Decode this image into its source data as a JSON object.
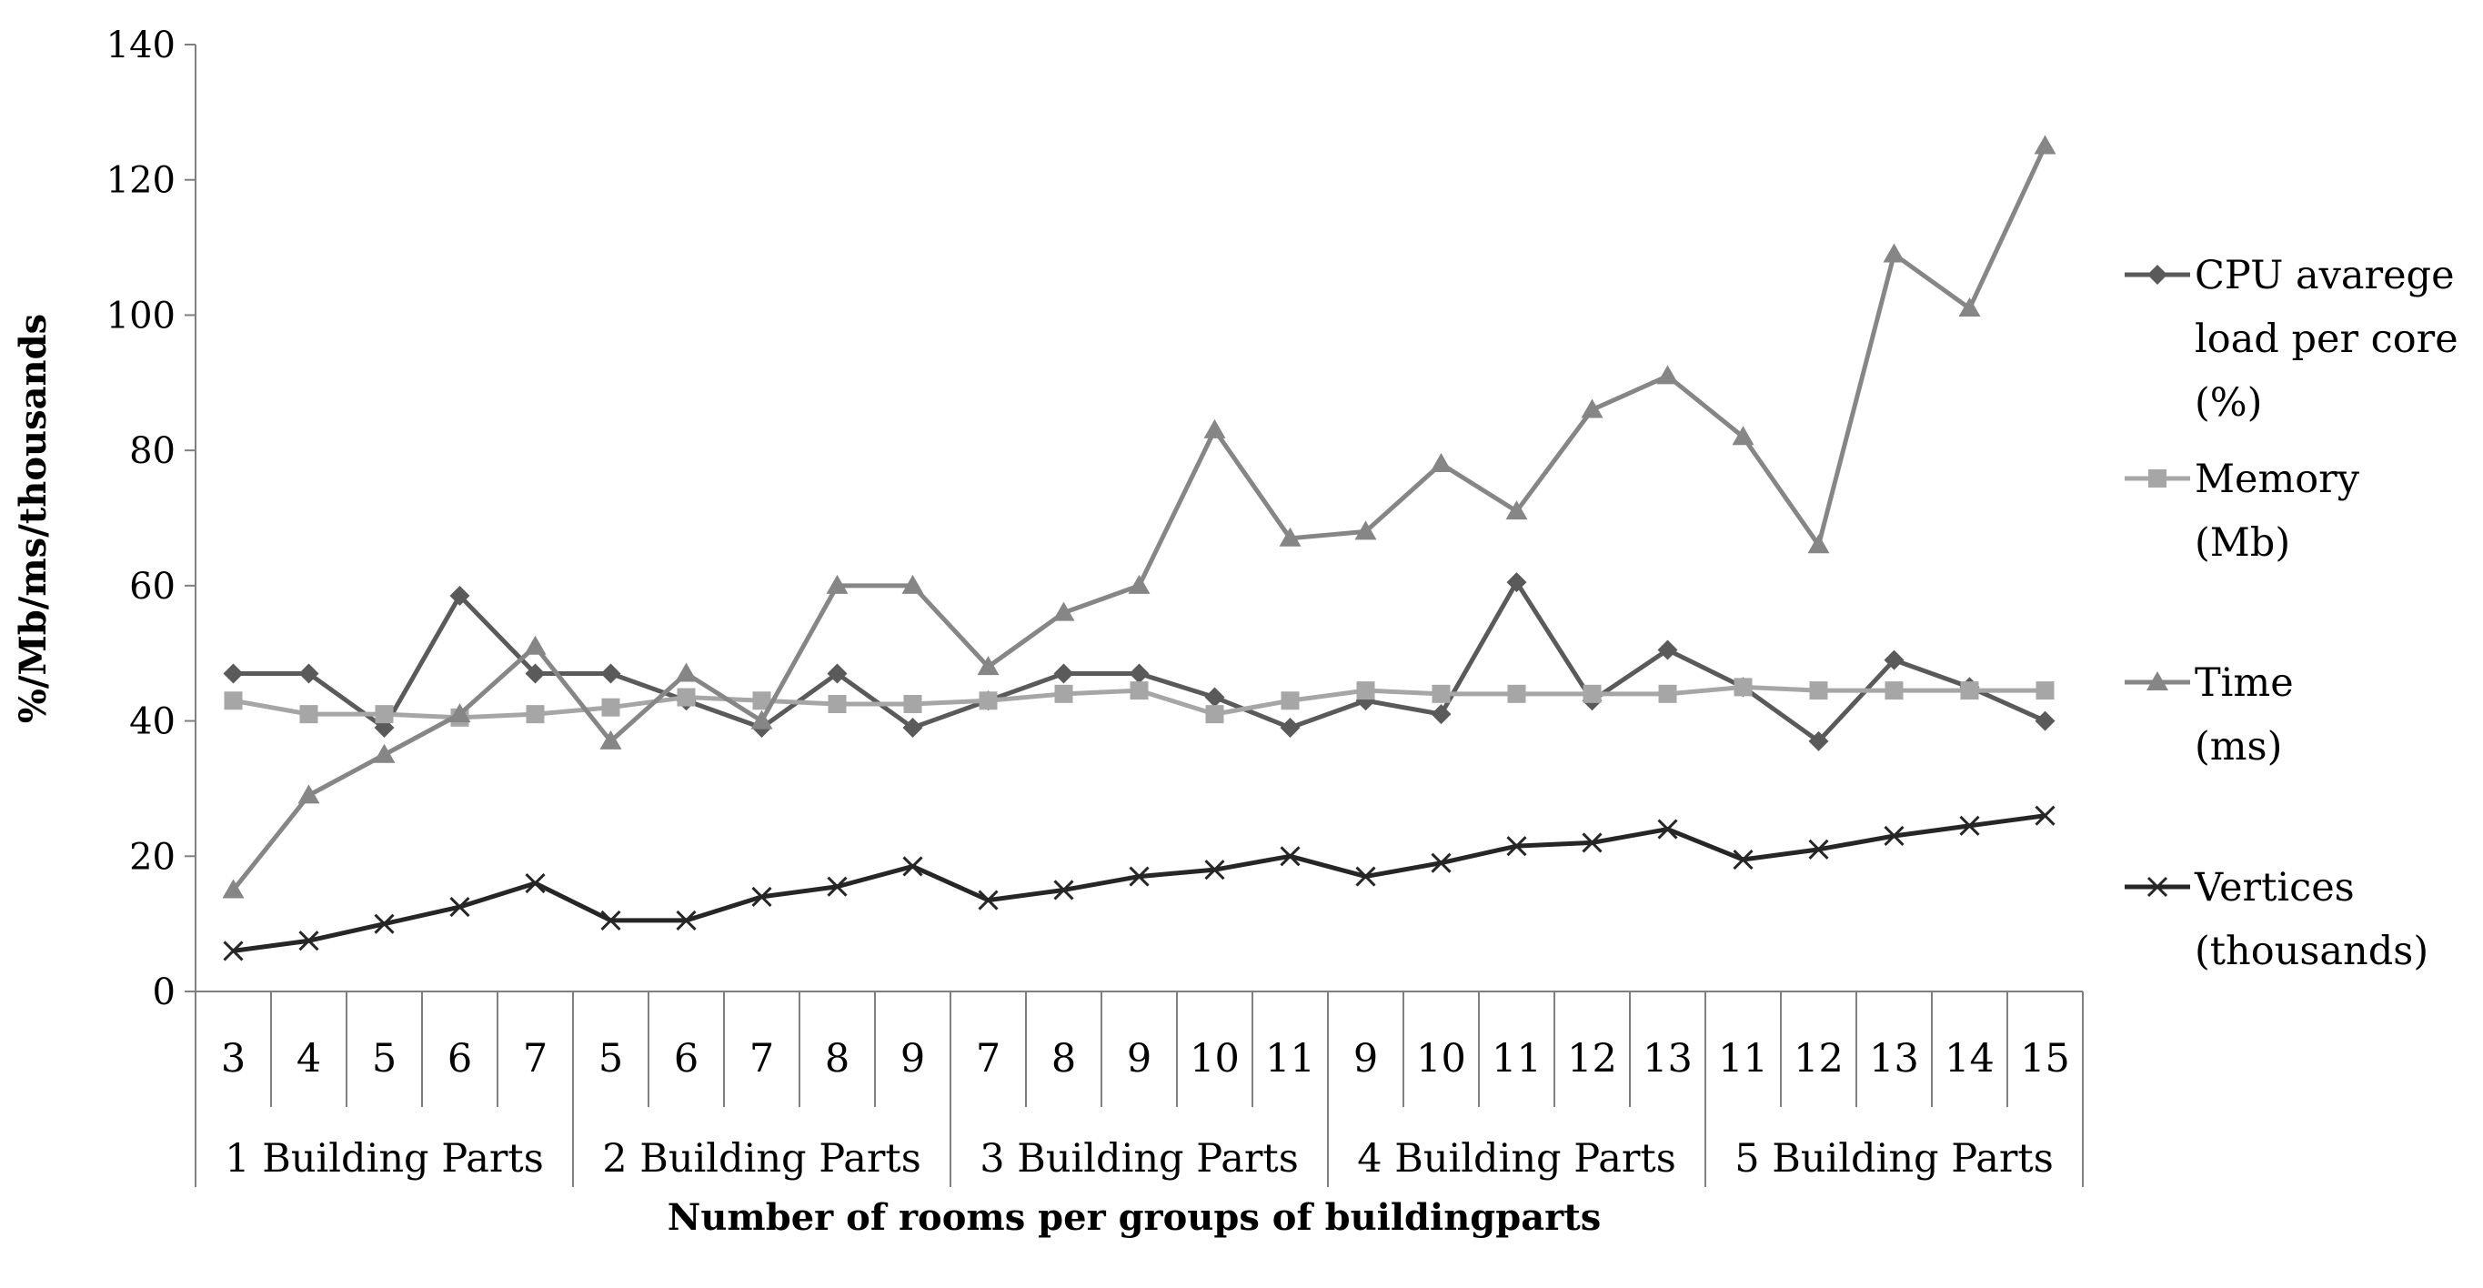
{
  "chart_data": {
    "type": "line",
    "xlabel": "Number of rooms per groups of buildingparts",
    "ylabel": "%/Mb/ms/thousands",
    "ylim": [
      0,
      140
    ],
    "yticks": [
      0,
      20,
      40,
      60,
      80,
      100,
      120,
      140
    ],
    "grid": false,
    "legend_position": "right",
    "categories": [
      "3",
      "4",
      "5",
      "6",
      "7",
      "5",
      "6",
      "7",
      "8",
      "9",
      "7",
      "8",
      "9",
      "10",
      "11",
      "9",
      "10",
      "11",
      "12",
      "13",
      "11",
      "12",
      "13",
      "14",
      "15"
    ],
    "groups": [
      {
        "label": "1 Building Parts",
        "count": 5
      },
      {
        "label": "2 Building Parts",
        "count": 5
      },
      {
        "label": "3 Building Parts",
        "count": 5
      },
      {
        "label": "4 Building Parts",
        "count": 5
      },
      {
        "label": "5 Building Parts",
        "count": 5
      }
    ],
    "series": [
      {
        "name": "CPU avarege load per core (%)",
        "legend_lines": [
          "CPU avarege",
          "load per core",
          "(%)"
        ],
        "marker": "diamond",
        "color": "#5a5a5a",
        "values": [
          47,
          47,
          39,
          58.5,
          47,
          47,
          43,
          39,
          47,
          39,
          43,
          47,
          47,
          43.5,
          39,
          43,
          41,
          60.5,
          43,
          50.5,
          45,
          37,
          49,
          45,
          40
        ]
      },
      {
        "name": "Memory (Mb)",
        "legend_lines": [
          "Memory",
          "(Mb)"
        ],
        "marker": "square",
        "color": "#a6a6a6",
        "values": [
          43,
          41,
          41,
          40.5,
          41,
          42,
          43.5,
          43,
          42.5,
          42.5,
          43,
          44,
          44.5,
          41,
          43,
          44.5,
          44,
          44,
          44,
          44,
          45,
          44.5,
          44.5,
          44.5,
          44.5
        ]
      },
      {
        "name": "Time (ms)",
        "legend_lines": [
          "Time",
          "(ms)"
        ],
        "marker": "triangle",
        "color": "#868686",
        "values": [
          15,
          29,
          35,
          41,
          51,
          37,
          47,
          40,
          60,
          60,
          48,
          56,
          60,
          83,
          67,
          68,
          78,
          71,
          86,
          91,
          82,
          66,
          109,
          101,
          125
        ]
      },
      {
        "name": "Vertices (thousands)",
        "legend_lines": [
          "Vertices",
          "(thousands)"
        ],
        "marker": "x",
        "color": "#262626",
        "values": [
          6,
          7.5,
          10,
          12.5,
          16,
          10.5,
          10.5,
          14,
          15.5,
          18.5,
          13.5,
          15,
          17,
          18,
          20,
          17,
          19,
          21.5,
          22,
          24,
          19.5,
          21,
          23,
          24.5,
          26
        ]
      }
    ]
  }
}
